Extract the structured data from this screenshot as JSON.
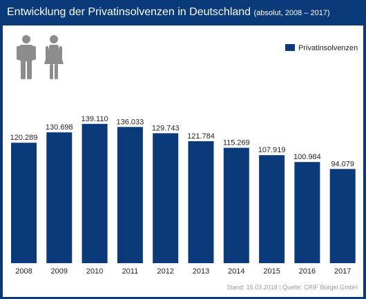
{
  "header": {
    "title": "Entwicklung der Privatinsolvenzen in Deutschland",
    "subtitle": "(absolut, 2008 – 2017)"
  },
  "colors": {
    "frame": "#0b3a7a",
    "bar": "#0b3a7a",
    "icon": "#8c8c8c"
  },
  "icons": [
    "male-figure-icon",
    "female-figure-icon"
  ],
  "legend": {
    "label": "Privatinsolvenzen"
  },
  "source": "Stand: 15.03.2018 | Quelle: CRIF Bürgel GmbH",
  "chart_data": {
    "type": "bar",
    "categories": [
      "2008",
      "2009",
      "2010",
      "2011",
      "2012",
      "2013",
      "2014",
      "2015",
      "2016",
      "2017"
    ],
    "series": [
      {
        "name": "Privatinsolvenzen",
        "values": [
          120289,
          130698,
          139110,
          136033,
          129743,
          121784,
          115269,
          107919,
          100984,
          94079
        ],
        "labels": [
          "120.289",
          "130.698",
          "139.110",
          "136.033",
          "129.743",
          "121.784",
          "115.269",
          "107.919",
          "100.984",
          "94.079"
        ]
      }
    ],
    "title": "Entwicklung der Privatinsolvenzen in Deutschland",
    "subtitle": "(absolut, 2008 – 2017)",
    "xlabel": "",
    "ylabel": "",
    "ylim": [
      0,
      150000
    ],
    "grid": false,
    "legend_position": "top-right"
  }
}
